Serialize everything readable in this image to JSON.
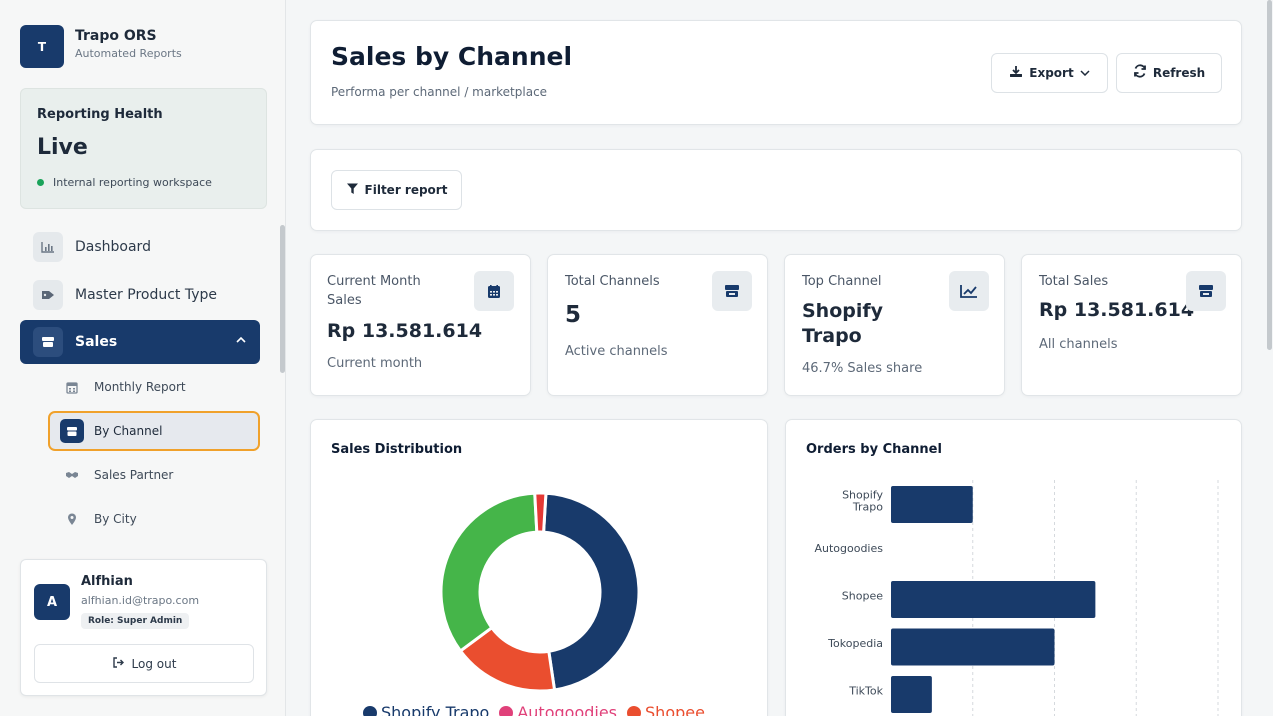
{
  "brand": {
    "logo_letter": "T",
    "name": "Trapo ORS",
    "subtitle": "Automated Reports"
  },
  "health": {
    "title": "Reporting Health",
    "status": "Live",
    "note": "Internal reporting workspace",
    "status_color": "#1aa35a"
  },
  "sidebar": {
    "items": [
      {
        "label": "Dashboard",
        "icon": "chart-icon"
      },
      {
        "label": "Master Product Type",
        "icon": "tag-icon"
      },
      {
        "label": "Sales",
        "icon": "store-icon",
        "expanded": true
      }
    ],
    "sub_items": [
      {
        "label": "Monthly Report",
        "icon": "calendar-icon"
      },
      {
        "label": "By Channel",
        "icon": "store-icon",
        "active": true
      },
      {
        "label": "Sales Partner",
        "icon": "handshake-icon"
      },
      {
        "label": "By City",
        "icon": "map-pin-icon"
      }
    ]
  },
  "user": {
    "initial": "A",
    "name": "Alfhian",
    "email": "alfhian.id@trapo.com",
    "role": "Role: Super Admin",
    "logout_label": "Log out"
  },
  "header": {
    "title": "Sales by Channel",
    "subtitle": "Performa per channel / marketplace",
    "export_label": "Export",
    "refresh_label": "Refresh"
  },
  "filter": {
    "label": "Filter report"
  },
  "stats": [
    {
      "label": "Current Month Sales",
      "value": "Rp 13.581.614",
      "note": "Current month",
      "icon": "calendar-icon"
    },
    {
      "label": "Total Channels",
      "value": "5",
      "note": "Active channels",
      "icon": "store-icon"
    },
    {
      "label": "Top Channel",
      "value": "Shopify Trapo",
      "note": "46.7% Sales share",
      "icon": "trend-icon"
    },
    {
      "label": "Total Sales",
      "value": "Rp 13.581.614",
      "note": "All channels",
      "icon": "store-icon"
    }
  ],
  "colors": {
    "primary": "#183a6b",
    "autogoodies": "#e0417a",
    "shopee": "#ea4e2f",
    "tokopedia": "#45b549",
    "active_outline": "#f0a12b"
  },
  "chart_data": [
    {
      "type": "pie",
      "title": "Sales Distribution",
      "categories": [
        "Shopify Trapo",
        "Autogoodies",
        "Shopee",
        "Tokopedia",
        "TikTok"
      ],
      "values": [
        46.7,
        0,
        17.2,
        34.3,
        1.8
      ],
      "colors": [
        "#183a6b",
        "#e0417a",
        "#ea4e2f",
        "#45b549",
        "#e53935"
      ],
      "legend_visible": [
        "Shopify Trapo",
        "Autogoodies",
        "Shopee"
      ],
      "legend_position": "bottom"
    },
    {
      "type": "bar",
      "orientation": "horizontal",
      "title": "Orders by Channel",
      "categories": [
        "Shopify Trapo",
        "Autogoodies",
        "Shopee",
        "Tokopedia",
        "TikTok"
      ],
      "values": [
        4,
        0,
        10,
        8,
        2
      ],
      "xlim": [
        0,
        16
      ],
      "grid": true,
      "color": "#183a6b"
    }
  ]
}
